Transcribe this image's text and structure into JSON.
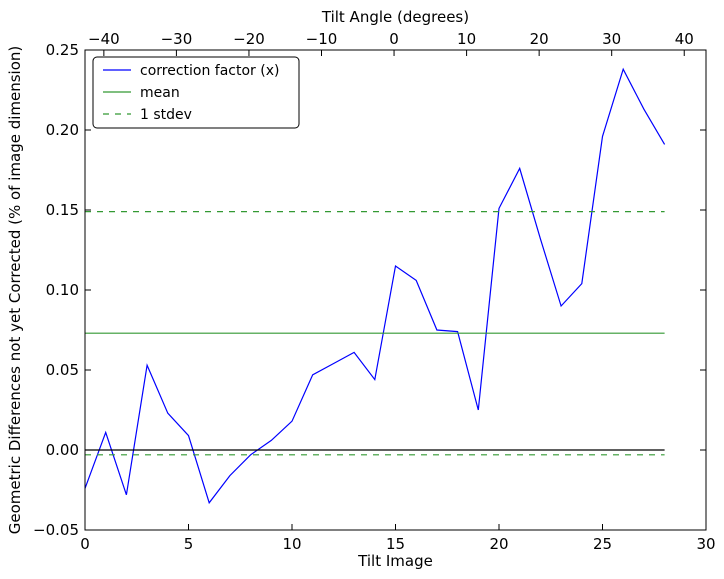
{
  "chart_data": {
    "type": "line",
    "xlabel": "Tilt Image",
    "ylabel": "Geometric Differences not yet Corrected (% of image dimension)",
    "top_xlabel": "Tilt Angle (degrees)",
    "xlim": [
      0,
      30
    ],
    "ylim": [
      -0.05,
      0.25
    ],
    "top_xlim": [
      -42.6,
      43.0
    ],
    "x_ticks": [
      0,
      5,
      10,
      15,
      20,
      25,
      30
    ],
    "y_ticks": [
      -0.05,
      0.0,
      0.05,
      0.1,
      0.15,
      0.2,
      0.25
    ],
    "top_x_ticks": [
      -40,
      -30,
      -20,
      -10,
      0,
      10,
      20,
      30,
      40
    ],
    "x_tick_labels": [
      "0",
      "5",
      "10",
      "15",
      "20",
      "25",
      "30"
    ],
    "y_tick_labels": [
      "−0.05",
      "0.00",
      "0.05",
      "0.10",
      "0.15",
      "0.20",
      "0.25"
    ],
    "top_x_tick_labels": [
      "−40",
      "−30",
      "−20",
      "−10",
      "0",
      "10",
      "20",
      "30",
      "40"
    ],
    "grid": false,
    "legend_position": "upper-left",
    "series": [
      {
        "name": "correction factor (x)",
        "color": "#0000ff",
        "style": "solid",
        "x": [
          0,
          1,
          2,
          3,
          4,
          5,
          6,
          7,
          8,
          9,
          10,
          11,
          12,
          13,
          14,
          15,
          16,
          17,
          18,
          19,
          20,
          21,
          22,
          23,
          24,
          25,
          26,
          27,
          28
        ],
        "y": [
          -0.024,
          0.011,
          -0.028,
          0.053,
          0.023,
          0.009,
          -0.033,
          -0.016,
          -0.003,
          0.006,
          0.018,
          0.047,
          0.054,
          0.061,
          0.044,
          0.115,
          0.106,
          0.075,
          0.074,
          0.025,
          0.151,
          0.176,
          0.132,
          0.09,
          0.104,
          0.196,
          0.238,
          0.213,
          0.191
        ]
      },
      {
        "name": "mean",
        "color": "#339933",
        "style": "solid",
        "x": [
          0,
          28
        ],
        "y": [
          0.073,
          0.073
        ]
      },
      {
        "name": "1 stdev",
        "color": "#339933",
        "style": "dashed",
        "x": [
          0,
          28
        ],
        "y": [
          0.149,
          0.149
        ]
      },
      {
        "name": "",
        "color": "#339933",
        "style": "dashed",
        "x": [
          0,
          28
        ],
        "y": [
          -0.003,
          -0.003
        ]
      },
      {
        "name": "",
        "color": "#000000",
        "style": "solid",
        "x": [
          0,
          28
        ],
        "y": [
          0.0,
          0.0
        ]
      }
    ]
  }
}
